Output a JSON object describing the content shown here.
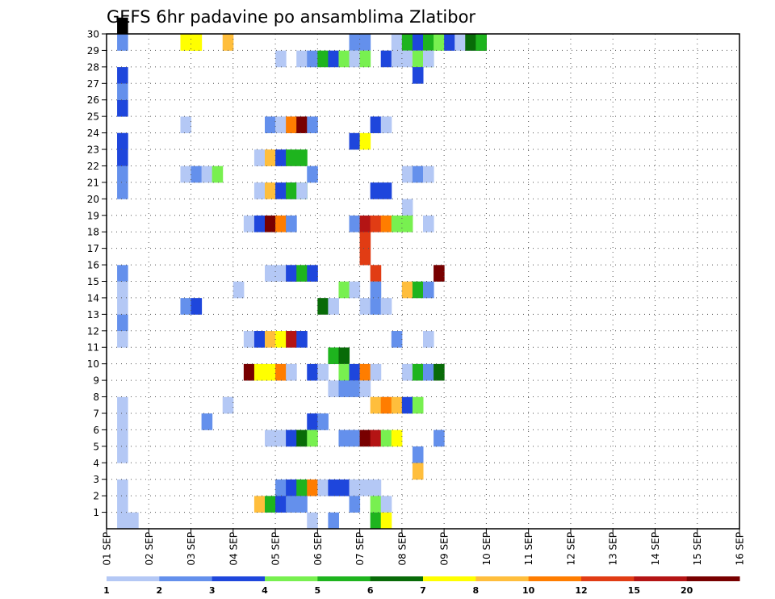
{
  "chart_data": {
    "type": "heatmap",
    "title": "GEFS 6hr padavine po ansamblima Zlatibor",
    "xlabel": "",
    "ylabel": "",
    "x_tick_labels": [
      "01 SEP",
      "02 SEP",
      "03 SEP",
      "04 SEP",
      "05 SEP",
      "06 SEP",
      "07 SEP",
      "08 SEP",
      "09 SEP",
      "10 SEP",
      "11 SEP",
      "12 SEP",
      "13 SEP",
      "14 SEP",
      "15 SEP",
      "16 SEP"
    ],
    "y_tick_labels": [
      "1",
      "2",
      "3",
      "4",
      "5",
      "6",
      "7",
      "8",
      "9",
      "10",
      "11",
      "12",
      "13",
      "14",
      "15",
      "16",
      "17",
      "18",
      "19",
      "20",
      "21",
      "22",
      "23",
      "24",
      "25",
      "26",
      "27",
      "28",
      "29",
      "30"
    ],
    "ylim": [
      0,
      30
    ],
    "time_steps": 60,
    "steps_per_day": 4,
    "grid": true,
    "colorbar": {
      "levels": [
        "1",
        "2",
        "3",
        "4",
        "5",
        "6",
        "7",
        "8",
        "10",
        "12",
        "15",
        "20"
      ],
      "colors": [
        "#b4c8f5",
        "#6490ec",
        "#1e46dc",
        "#78f050",
        "#1eb41e",
        "#086b08",
        "#ffff00",
        "#ffbe3c",
        "#ff7d00",
        "#e13c14",
        "#b41414",
        "#780000"
      ]
    },
    "cells": [
      [
        1,
        0,
        30,
        1
      ],
      [
        1,
        2,
        29,
        1
      ],
      [
        1,
        3,
        27,
        1
      ],
      [
        1,
        2,
        26,
        1
      ],
      [
        1,
        3,
        22,
        1
      ],
      [
        1,
        2,
        21,
        1
      ],
      [
        1,
        2,
        20,
        1
      ],
      [
        1,
        2,
        15,
        1
      ],
      [
        1,
        1,
        14,
        1
      ],
      [
        1,
        1,
        13,
        1
      ],
      [
        1,
        2,
        12,
        1
      ],
      [
        1,
        1,
        11,
        1
      ],
      [
        1,
        1,
        7,
        1
      ],
      [
        1,
        1,
        6,
        1
      ],
      [
        1,
        1,
        5,
        1
      ],
      [
        1,
        1,
        4,
        1
      ],
      [
        1,
        1,
        2,
        1
      ],
      [
        1,
        1,
        1,
        1
      ],
      [
        1,
        1,
        0,
        1
      ],
      [
        1,
        3,
        25,
        1
      ],
      [
        1,
        3,
        23,
        1
      ],
      [
        2,
        1,
        0,
        1
      ],
      [
        7,
        7,
        29,
        2
      ],
      [
        8,
        7,
        29,
        1
      ],
      [
        11,
        8,
        29,
        1
      ],
      [
        23,
        2,
        29,
        2
      ],
      [
        27,
        1,
        29,
        1
      ],
      [
        28,
        5,
        29,
        1
      ],
      [
        29,
        3,
        29,
        1
      ],
      [
        30,
        5,
        29,
        1
      ],
      [
        31,
        4,
        29,
        1
      ],
      [
        32,
        3,
        29,
        1
      ],
      [
        33,
        1,
        29,
        2
      ],
      [
        34,
        6,
        29,
        2
      ],
      [
        35,
        5,
        29,
        1
      ],
      [
        16,
        1,
        28,
        1
      ],
      [
        18,
        1,
        28,
        1
      ],
      [
        19,
        2,
        28,
        1
      ],
      [
        20,
        5,
        28,
        1
      ],
      [
        21,
        3,
        28,
        1
      ],
      [
        22,
        4,
        28,
        1
      ],
      [
        23,
        1,
        28,
        1
      ],
      [
        24,
        4,
        28,
        1
      ],
      [
        26,
        3,
        28,
        1
      ],
      [
        27,
        1,
        28,
        1
      ],
      [
        28,
        1,
        28,
        1
      ],
      [
        29,
        4,
        28,
        2
      ],
      [
        30,
        1,
        28,
        1
      ],
      [
        29,
        3,
        27,
        1
      ],
      [
        7,
        1,
        24,
        1
      ],
      [
        15,
        2,
        24,
        1
      ],
      [
        16,
        1,
        24,
        1
      ],
      [
        17,
        9,
        24,
        1
      ],
      [
        18,
        12,
        24,
        1
      ],
      [
        19,
        2,
        24,
        1
      ],
      [
        25,
        3,
        24,
        1
      ],
      [
        26,
        1,
        24,
        1
      ],
      [
        1,
        3,
        23,
        1
      ],
      [
        23,
        3,
        23,
        1
      ],
      [
        24,
        7,
        23,
        1
      ],
      [
        14,
        1,
        22,
        1
      ],
      [
        15,
        8,
        22,
        1
      ],
      [
        16,
        3,
        22,
        1
      ],
      [
        17,
        5,
        22,
        2
      ],
      [
        7,
        1,
        21,
        1
      ],
      [
        8,
        2,
        21,
        1
      ],
      [
        9,
        1,
        21,
        1
      ],
      [
        10,
        4,
        21,
        1
      ],
      [
        19,
        2,
        21,
        1
      ],
      [
        28,
        1,
        21,
        1
      ],
      [
        29,
        2,
        21,
        1
      ],
      [
        30,
        1,
        21,
        1
      ],
      [
        14,
        1,
        20,
        1
      ],
      [
        15,
        8,
        20,
        1
      ],
      [
        16,
        3,
        20,
        2
      ],
      [
        17,
        5,
        20,
        2
      ],
      [
        18,
        1,
        20,
        1
      ],
      [
        25,
        3,
        20,
        2
      ],
      [
        28,
        1,
        19,
        1
      ],
      [
        13,
        1,
        18,
        1
      ],
      [
        14,
        3,
        18,
        1
      ],
      [
        15,
        12,
        18,
        1
      ],
      [
        16,
        9,
        18,
        1
      ],
      [
        17,
        2,
        18,
        1
      ],
      [
        23,
        2,
        18,
        1
      ],
      [
        24,
        11,
        18,
        1
      ],
      [
        25,
        10,
        18,
        1
      ],
      [
        26,
        9,
        18,
        1
      ],
      [
        27,
        4,
        18,
        2
      ],
      [
        30,
        1,
        18,
        1
      ],
      [
        24,
        10,
        17,
        1
      ],
      [
        24,
        10,
        16,
        1
      ],
      [
        15,
        1,
        15,
        1
      ],
      [
        16,
        1,
        15,
        1
      ],
      [
        17,
        3,
        15,
        1
      ],
      [
        18,
        5,
        15,
        1
      ],
      [
        19,
        3,
        15,
        1
      ],
      [
        25,
        10,
        15,
        1
      ],
      [
        31,
        12,
        15,
        1
      ],
      [
        12,
        1,
        14,
        1
      ],
      [
        22,
        4,
        14,
        1
      ],
      [
        23,
        1,
        14,
        1
      ],
      [
        25,
        2,
        14,
        1
      ],
      [
        28,
        8,
        14,
        1
      ],
      [
        29,
        5,
        14,
        1
      ],
      [
        30,
        2,
        14,
        1
      ],
      [
        7,
        2,
        13,
        1
      ],
      [
        8,
        3,
        13,
        1
      ],
      [
        20,
        6,
        13,
        1
      ],
      [
        21,
        1,
        13,
        1
      ],
      [
        24,
        1,
        13,
        1
      ],
      [
        25,
        2,
        13,
        1
      ],
      [
        26,
        1,
        13,
        1
      ],
      [
        13,
        1,
        11,
        1
      ],
      [
        14,
        3,
        11,
        1
      ],
      [
        15,
        8,
        11,
        1
      ],
      [
        16,
        7,
        11,
        1
      ],
      [
        17,
        11,
        11,
        1
      ],
      [
        18,
        3,
        11,
        1
      ],
      [
        27,
        2,
        11,
        1
      ],
      [
        30,
        1,
        11,
        1
      ],
      [
        21,
        5,
        10,
        1
      ],
      [
        22,
        6,
        10,
        1
      ],
      [
        13,
        12,
        9,
        1
      ],
      [
        14,
        7,
        9,
        1
      ],
      [
        15,
        7,
        9,
        1
      ],
      [
        16,
        9,
        9,
        1
      ],
      [
        17,
        1,
        9,
        1
      ],
      [
        19,
        3,
        9,
        1
      ],
      [
        20,
        1,
        9,
        1
      ],
      [
        22,
        4,
        9,
        1
      ],
      [
        23,
        3,
        9,
        1
      ],
      [
        24,
        9,
        9,
        1
      ],
      [
        25,
        1,
        9,
        1
      ],
      [
        28,
        1,
        9,
        1
      ],
      [
        29,
        5,
        9,
        1
      ],
      [
        30,
        2,
        9,
        1
      ],
      [
        31,
        6,
        9,
        1
      ],
      [
        21,
        1,
        8,
        1
      ],
      [
        22,
        2,
        8,
        1
      ],
      [
        23,
        2,
        8,
        1
      ],
      [
        24,
        1,
        8,
        1
      ],
      [
        11,
        1,
        7,
        1
      ],
      [
        25,
        8,
        7,
        1
      ],
      [
        26,
        9,
        7,
        1
      ],
      [
        27,
        8,
        7,
        1
      ],
      [
        28,
        3,
        7,
        1
      ],
      [
        29,
        4,
        7,
        1
      ],
      [
        9,
        2,
        6,
        1
      ],
      [
        19,
        3,
        6,
        1
      ],
      [
        20,
        2,
        6,
        1
      ],
      [
        15,
        1,
        5,
        1
      ],
      [
        16,
        1,
        5,
        1
      ],
      [
        17,
        3,
        5,
        1
      ],
      [
        18,
        6,
        5,
        1
      ],
      [
        19,
        4,
        5,
        1
      ],
      [
        22,
        2,
        5,
        1
      ],
      [
        23,
        2,
        5,
        1
      ],
      [
        24,
        12,
        5,
        1
      ],
      [
        25,
        11,
        5,
        1
      ],
      [
        26,
        4,
        5,
        1
      ],
      [
        27,
        7,
        5,
        1
      ],
      [
        31,
        2,
        5,
        1
      ],
      [
        29,
        2,
        4,
        1
      ],
      [
        29,
        8,
        3,
        1
      ],
      [
        16,
        2,
        2,
        1
      ],
      [
        17,
        3,
        2,
        1
      ],
      [
        18,
        5,
        2,
        1
      ],
      [
        19,
        9,
        2,
        1
      ],
      [
        20,
        1,
        2,
        1
      ],
      [
        21,
        3,
        2,
        1
      ],
      [
        22,
        3,
        2,
        1
      ],
      [
        23,
        1,
        2,
        1
      ],
      [
        24,
        1,
        2,
        1
      ],
      [
        25,
        1,
        2,
        1
      ],
      [
        14,
        8,
        1,
        1
      ],
      [
        15,
        5,
        1,
        1
      ],
      [
        16,
        3,
        1,
        1
      ],
      [
        17,
        2,
        1,
        1
      ],
      [
        18,
        2,
        1,
        1
      ],
      [
        23,
        2,
        1,
        1
      ],
      [
        25,
        4,
        1,
        1
      ],
      [
        26,
        1,
        1,
        1
      ],
      [
        19,
        1,
        0,
        1
      ],
      [
        21,
        2,
        0,
        1
      ],
      [
        25,
        5,
        0,
        1
      ],
      [
        26,
        7,
        0,
        1
      ]
    ]
  }
}
